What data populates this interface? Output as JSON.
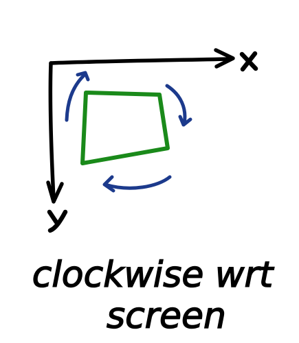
{
  "axes": {
    "x_label": "x",
    "y_label": "y",
    "axis_color": "#000000"
  },
  "shape": {
    "kind": "quadrilateral",
    "color": "#1a8a1a"
  },
  "rotation": {
    "direction": "clockwise",
    "color": "#1c3a8c",
    "arrow_count": 3
  },
  "caption": {
    "line1": "clockwise wrt",
    "line2": "screen",
    "color": "#000000"
  }
}
